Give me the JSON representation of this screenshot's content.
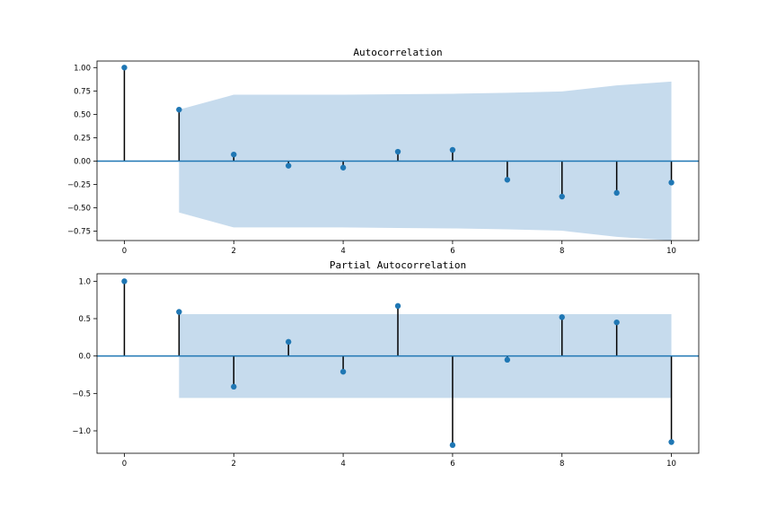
{
  "chart_data": [
    {
      "type": "stem",
      "title": "Autocorrelation",
      "xlabel": "",
      "ylabel": "",
      "xlim": [
        -0.5,
        10.5
      ],
      "ylim": [
        -0.85,
        1.07
      ],
      "x_ticks": [
        0,
        2,
        4,
        6,
        8,
        10
      ],
      "y_ticks": [
        -0.75,
        -0.5,
        -0.25,
        0.0,
        0.25,
        0.5,
        0.75,
        1.0
      ],
      "x_tick_labels": [
        "0",
        "2",
        "4",
        "6",
        "8",
        "10"
      ],
      "y_tick_labels": [
        "−0.75",
        "−0.50",
        "−0.25",
        "0.00",
        "0.25",
        "0.50",
        "0.75",
        "1.00"
      ],
      "x": [
        0,
        1,
        2,
        3,
        4,
        5,
        6,
        7,
        8,
        9,
        10
      ],
      "values": [
        1.0,
        0.55,
        0.07,
        -0.05,
        -0.07,
        0.1,
        0.12,
        -0.2,
        -0.38,
        -0.34,
        -0.23
      ],
      "confidence_band": {
        "x": [
          1,
          2,
          3,
          4,
          5,
          6,
          7,
          8,
          9,
          10
        ],
        "upper": [
          0.55,
          0.71,
          0.71,
          0.71,
          0.715,
          0.72,
          0.73,
          0.745,
          0.81,
          0.85
        ],
        "lower": [
          -0.55,
          -0.71,
          -0.71,
          -0.71,
          -0.715,
          -0.72,
          -0.73,
          -0.745,
          -0.81,
          -0.85
        ]
      },
      "grid": false
    },
    {
      "type": "stem",
      "title": "Partial Autocorrelation",
      "xlabel": "",
      "ylabel": "",
      "xlim": [
        -0.5,
        10.5
      ],
      "ylim": [
        -1.3,
        1.1
      ],
      "x_ticks": [
        0,
        2,
        4,
        6,
        8,
        10
      ],
      "y_ticks": [
        -1.0,
        -0.5,
        0.0,
        0.5,
        1.0
      ],
      "x_tick_labels": [
        "0",
        "2",
        "4",
        "6",
        "8",
        "10"
      ],
      "y_tick_labels": [
        "−1.0",
        "−0.5",
        "0.0",
        "0.5",
        "1.0"
      ],
      "x": [
        0,
        1,
        2,
        3,
        4,
        5,
        6,
        7,
        8,
        9,
        10
      ],
      "values": [
        1.0,
        0.59,
        -0.41,
        0.19,
        -0.21,
        0.67,
        -1.19,
        -0.05,
        0.52,
        0.45,
        -1.15
      ],
      "confidence_band": {
        "x": [
          1,
          2,
          3,
          4,
          5,
          6,
          7,
          8,
          9,
          10
        ],
        "upper": [
          0.56,
          0.56,
          0.56,
          0.56,
          0.56,
          0.56,
          0.56,
          0.56,
          0.56,
          0.56
        ],
        "lower": [
          -0.56,
          -0.56,
          -0.56,
          -0.56,
          -0.56,
          -0.56,
          -0.56,
          -0.56,
          -0.56,
          -0.56
        ]
      },
      "grid": false
    }
  ],
  "colors": {
    "marker": "#1f77b4",
    "baseline": "#1f77b4",
    "band": "#c6dbed",
    "stem": "#000000"
  }
}
